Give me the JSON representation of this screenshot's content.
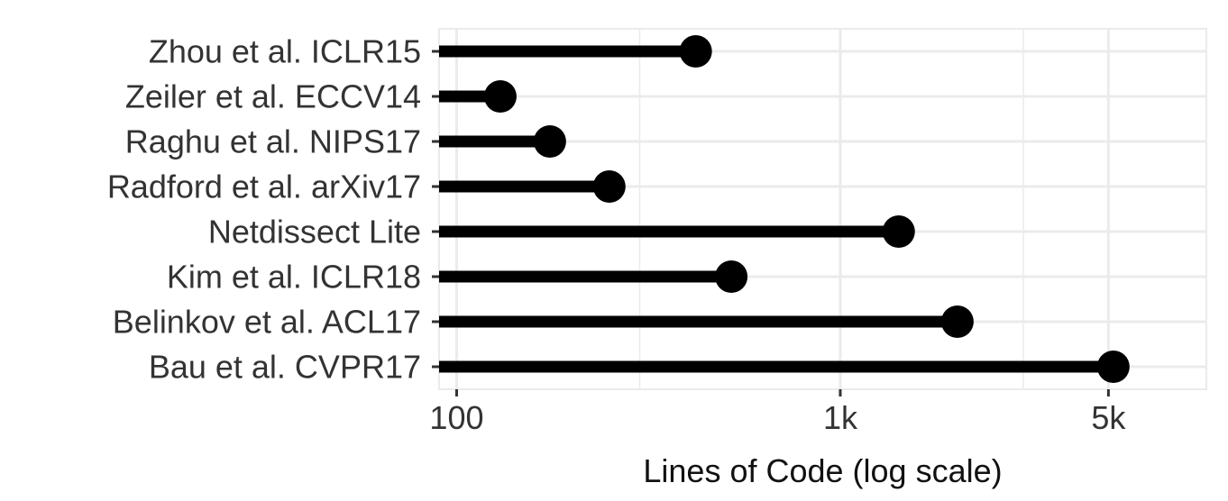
{
  "chart_data": {
    "type": "lollipop",
    "xscale": "log",
    "xlabel": "Lines of Code (log scale)",
    "xlim": [
      90,
      9000
    ],
    "xticks": [
      {
        "value": 100,
        "label": "100"
      },
      {
        "value": 1000,
        "label": "1k"
      },
      {
        "value": 5000,
        "label": "5k"
      }
    ],
    "x_minor_grid": [
      300,
      3000
    ],
    "categories": [
      "Zhou et al. ICLR15",
      "Zeiler et al. ECCV14",
      "Raghu et al. NIPS17",
      "Radford et al.  arXiv17",
      "Netdissect Lite",
      "Kim et al. ICLR18",
      "Belinkov et al. ACL17",
      "Bau et al. CVPR17"
    ],
    "values": [
      420,
      130,
      175,
      250,
      1420,
      520,
      2020,
      5150
    ],
    "grid": true,
    "colors": {
      "mark": "#000000",
      "grid": "#ebebeb",
      "text": "#333333"
    }
  }
}
